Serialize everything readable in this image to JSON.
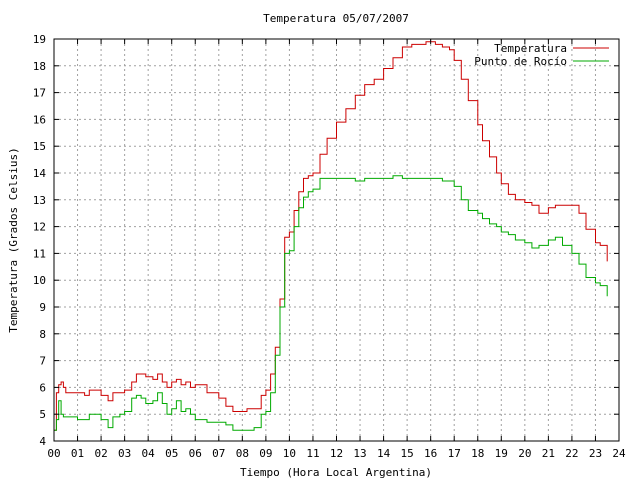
{
  "chart_data": {
    "type": "line",
    "title": "Temperatura 05/07/2007",
    "xlabel": "Tiempo (Hora Local Argentina)",
    "ylabel": "Temperatura (Grados Celsius)",
    "xlim": [
      0,
      24
    ],
    "ylim": [
      4,
      19
    ],
    "xticks": [
      0,
      1,
      2,
      3,
      4,
      5,
      6,
      7,
      8,
      9,
      10,
      11,
      12,
      13,
      14,
      15,
      16,
      17,
      18,
      19,
      20,
      21,
      22,
      23,
      24
    ],
    "xtick_labels": [
      "00",
      "01",
      "02",
      "03",
      "04",
      "05",
      "06",
      "07",
      "08",
      "09",
      "10",
      "11",
      "12",
      "13",
      "14",
      "15",
      "16",
      "17",
      "18",
      "19",
      "20",
      "21",
      "22",
      "23",
      "24"
    ],
    "yticks": [
      4,
      5,
      6,
      7,
      8,
      9,
      10,
      11,
      12,
      13,
      14,
      15,
      16,
      17,
      18,
      19
    ],
    "ytick_labels": [
      "4",
      "5",
      "6",
      "7",
      "8",
      "9",
      "10",
      "11",
      "12",
      "13",
      "14",
      "15",
      "16",
      "17",
      "18",
      "19"
    ],
    "grid": true,
    "legend_position": "top-right",
    "series": [
      {
        "name": "Temperatura",
        "color": "#cc0000",
        "x": [
          0.0,
          0.1,
          0.2,
          0.3,
          0.4,
          0.5,
          1.0,
          1.3,
          1.5,
          1.8,
          2.0,
          2.3,
          2.5,
          2.8,
          3.0,
          3.3,
          3.5,
          3.7,
          3.9,
          4.2,
          4.4,
          4.6,
          4.8,
          5.0,
          5.2,
          5.4,
          5.6,
          5.8,
          6.0,
          6.5,
          7.0,
          7.3,
          7.6,
          7.9,
          8.2,
          8.5,
          8.8,
          9.0,
          9.2,
          9.4,
          9.6,
          9.8,
          10.0,
          10.2,
          10.4,
          10.6,
          10.8,
          11.0,
          11.3,
          11.6,
          12.0,
          12.4,
          12.8,
          13.2,
          13.6,
          14.0,
          14.4,
          14.8,
          15.0,
          15.2,
          15.5,
          15.8,
          16.0,
          16.2,
          16.5,
          16.8,
          17.0,
          17.3,
          17.6,
          18.0,
          18.2,
          18.5,
          18.8,
          19.0,
          19.3,
          19.6,
          20.0,
          20.3,
          20.6,
          21.0,
          21.3,
          21.6,
          22.0,
          22.3,
          22.6,
          23.0,
          23.2,
          23.5
        ],
        "y": [
          4.4,
          5.8,
          6.1,
          6.2,
          6.0,
          5.8,
          5.8,
          5.7,
          5.9,
          5.9,
          5.7,
          5.5,
          5.8,
          5.8,
          5.9,
          6.2,
          6.5,
          6.5,
          6.4,
          6.3,
          6.5,
          6.2,
          6.0,
          6.2,
          6.3,
          6.1,
          6.2,
          6.0,
          6.1,
          5.8,
          5.6,
          5.3,
          5.1,
          5.1,
          5.2,
          5.2,
          5.7,
          5.9,
          6.5,
          7.5,
          9.3,
          11.6,
          11.8,
          12.6,
          13.3,
          13.8,
          13.9,
          14.0,
          14.7,
          15.3,
          15.9,
          16.4,
          16.9,
          17.3,
          17.5,
          17.9,
          18.3,
          18.7,
          18.7,
          18.8,
          18.8,
          18.9,
          18.9,
          18.8,
          18.7,
          18.6,
          18.2,
          17.5,
          16.7,
          15.8,
          15.2,
          14.6,
          14.0,
          13.6,
          13.2,
          13.0,
          12.9,
          12.8,
          12.5,
          12.7,
          12.8,
          12.8,
          12.8,
          12.5,
          11.9,
          11.4,
          11.3,
          10.7
        ],
        "points": null
      },
      {
        "name": "Punto de Rocío",
        "color": "#00aa00",
        "x": [
          0.0,
          0.1,
          0.2,
          0.3,
          0.4,
          0.5,
          1.0,
          1.3,
          1.5,
          1.8,
          2.0,
          2.3,
          2.5,
          2.8,
          3.0,
          3.3,
          3.5,
          3.7,
          3.9,
          4.2,
          4.4,
          4.6,
          4.8,
          5.0,
          5.2,
          5.4,
          5.6,
          5.8,
          6.0,
          6.5,
          7.0,
          7.3,
          7.6,
          7.9,
          8.2,
          8.5,
          8.8,
          9.0,
          9.2,
          9.4,
          9.6,
          9.8,
          10.0,
          10.2,
          10.4,
          10.6,
          10.8,
          11.0,
          11.3,
          11.6,
          12.0,
          12.4,
          12.8,
          13.2,
          13.6,
          14.0,
          14.4,
          14.8,
          15.0,
          15.2,
          15.5,
          15.8,
          16.0,
          16.2,
          16.5,
          16.8,
          17.0,
          17.3,
          17.6,
          18.0,
          18.2,
          18.5,
          18.8,
          19.0,
          19.3,
          19.6,
          20.0,
          20.3,
          20.6,
          21.0,
          21.3,
          21.6,
          22.0,
          22.3,
          22.6,
          23.0,
          23.2,
          23.5
        ],
        "y": [
          4.4,
          4.8,
          5.5,
          5.0,
          4.9,
          4.9,
          4.8,
          4.8,
          5.0,
          5.0,
          4.8,
          4.5,
          4.9,
          5.0,
          5.1,
          5.6,
          5.7,
          5.6,
          5.4,
          5.5,
          5.8,
          5.4,
          5.0,
          5.2,
          5.5,
          5.1,
          5.2,
          5.0,
          4.8,
          4.7,
          4.7,
          4.6,
          4.4,
          4.4,
          4.4,
          4.5,
          5.0,
          5.1,
          5.8,
          7.2,
          9.0,
          11.0,
          11.1,
          12.0,
          12.7,
          13.1,
          13.3,
          13.4,
          13.8,
          13.8,
          13.8,
          13.8,
          13.7,
          13.8,
          13.8,
          13.8,
          13.9,
          13.8,
          13.8,
          13.8,
          13.8,
          13.8,
          13.8,
          13.8,
          13.7,
          13.7,
          13.5,
          13.0,
          12.6,
          12.5,
          12.3,
          12.1,
          12.0,
          11.8,
          11.7,
          11.5,
          11.4,
          11.2,
          11.3,
          11.5,
          11.6,
          11.3,
          11.0,
          10.6,
          10.1,
          9.9,
          9.8,
          9.4
        ],
        "points": null
      }
    ]
  }
}
